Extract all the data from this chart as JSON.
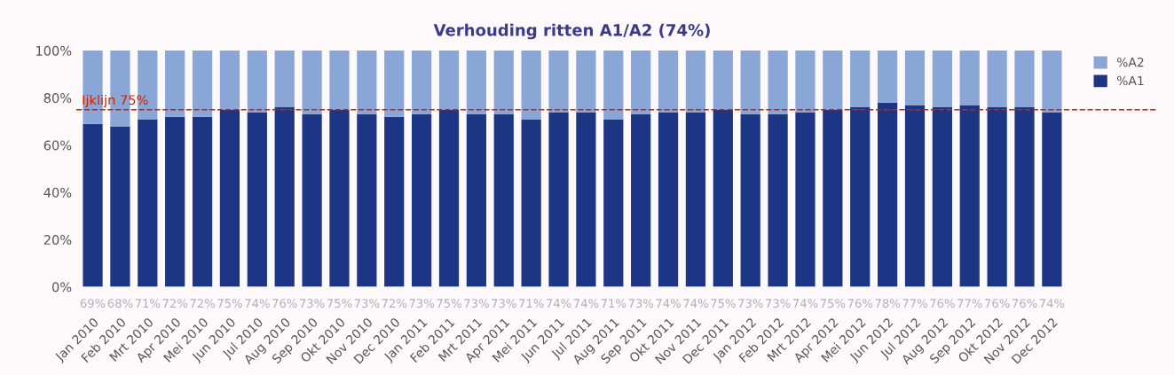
{
  "chart_data": {
    "type": "bar",
    "title": "Verhouding ritten A1/A2 (74%)",
    "stacked": true,
    "categories": [
      "Jan 2010",
      "Feb 2010",
      "Mrt 2010",
      "Apr 2010",
      "Mei 2010",
      "Jun 2010",
      "Jul 2010",
      "Aug 2010",
      "Sep 2010",
      "Okt 2010",
      "Nov 2010",
      "Dec 2010",
      "Jan 2011",
      "Feb 2011",
      "Mrt 2011",
      "Apr 2011",
      "Mei 2011",
      "Jun 2011",
      "Jul 2011",
      "Aug 2011",
      "Sep 2011",
      "Okt 2011",
      "Nov 2011",
      "Dec 2011",
      "Jan 2012",
      "Feb 2012",
      "Mrt 2012",
      "Apr 2012",
      "Mei 2012",
      "Jun 2012",
      "Jul 2012",
      "Aug 2012",
      "Sep 2012",
      "Okt 2012",
      "Nov 2012",
      "Dec 2012"
    ],
    "series": [
      {
        "name": "%A1",
        "color": "#1c3585",
        "values": [
          69,
          68,
          71,
          72,
          72,
          75,
          74,
          76,
          73,
          75,
          73,
          72,
          73,
          75,
          73,
          73,
          71,
          74,
          74,
          71,
          73,
          74,
          74,
          75,
          73,
          73,
          74,
          75,
          76,
          78,
          77,
          76,
          77,
          76,
          76,
          74
        ],
        "value_labels": [
          "69%",
          "68%",
          "71%",
          "72%",
          "72%",
          "75%",
          "74%",
          "76%",
          "73%",
          "75%",
          "73%",
          "72%",
          "73%",
          "75%",
          "73%",
          "73%",
          "71%",
          "74%",
          "74%",
          "71%",
          "73%",
          "74%",
          "74%",
          "75%",
          "73%",
          "73%",
          "74%",
          "75%",
          "76%",
          "78%",
          "77%",
          "76%",
          "77%",
          "76%",
          "76%",
          "74%"
        ]
      },
      {
        "name": "%A2",
        "color": "#8aa6d6",
        "values": [
          31,
          32,
          29,
          28,
          28,
          25,
          26,
          24,
          27,
          25,
          27,
          28,
          27,
          25,
          27,
          27,
          29,
          26,
          26,
          29,
          27,
          26,
          26,
          25,
          27,
          27,
          26,
          25,
          24,
          22,
          23,
          24,
          23,
          24,
          24,
          26
        ]
      }
    ],
    "ylim": [
      0,
      100
    ],
    "yticks": [
      {
        "value": 0,
        "label": "0%"
      },
      {
        "value": 20,
        "label": "20%"
      },
      {
        "value": 40,
        "label": "40%"
      },
      {
        "value": 60,
        "label": "60%"
      },
      {
        "value": 80,
        "label": "80%"
      },
      {
        "value": 100,
        "label": "100%"
      }
    ],
    "ref_lines": [
      {
        "axis": "y",
        "value": 75,
        "label": "Ijklijn 75%",
        "color": "#cc2200",
        "line_style": "dashed"
      }
    ],
    "legend": "top right",
    "grid": false
  }
}
